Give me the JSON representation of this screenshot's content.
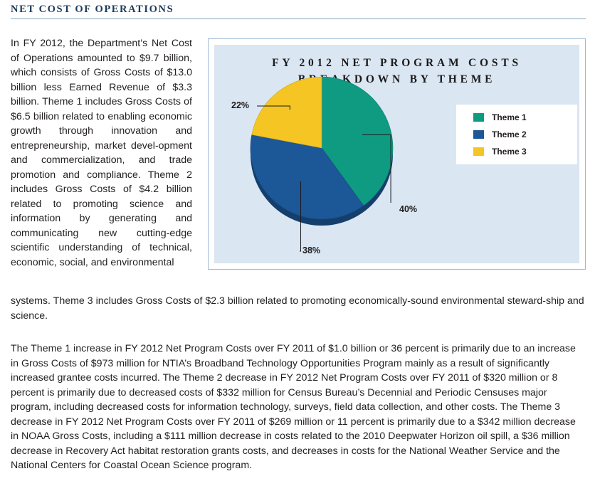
{
  "section_heading": "NET COST OF OPERATIONS",
  "paragraph1_left": "In FY 2012, the Department’s Net Cost of Operations amounted to $9.7 billion, which consists of Gross Costs of $13.0 billion less Earned Revenue of $3.3 billion. Theme 1 includes Gross Costs of $6.5 billion related to enabling economic growth through innovation and entrepreneurship, market devel-opment and commercialization, and trade promotion and compliance. Theme 2 includes Gross Costs of $4.2 billion related to promoting science and information by generating and communicating new cutting-edge scientific understanding of technical, economic, social, and environmental",
  "paragraph1_cont": "systems. Theme 3 includes Gross Costs of $2.3 billion related to promoting economically-sound environmental steward-ship and science.",
  "paragraph2": "The Theme 1 increase in FY 2012 Net Program Costs over FY 2011 of $1.0 billion or 36 percent is primarily due to an increase in Gross Costs of $973 million for NTIA’s Broadband Technology Opportunities Program mainly as a result of significantly increased grantee costs incurred. The Theme 2 decrease in FY 2012 Net Program Costs over FY 2011 of $320 million or 8 percent is primarily due to decreased costs of $332 million for Census Bureau’s Decennial and Periodic Censuses major program, including decreased costs for information technology, surveys, field data collection, and other costs. The Theme 3 decrease in FY 2012 Net Program Costs over FY 2011 of $269 million or 11 percent is primarily due to a $342 million decrease in NOAA Gross Costs, including a $111 million decrease in costs related to the 2010 Deepwater Horizon oil spill, a $36 million decrease in Recovery Act habitat restoration grants costs, and decreases in costs for the National Weather Service and the National Centers for Coastal Ocean Science program.",
  "chart_data": {
    "type": "pie",
    "title_line1": "FY 2012 NET PROGRAM COSTS",
    "title_line2": "BREAKDOWN BY THEME",
    "categories": [
      "Theme 1",
      "Theme 2",
      "Theme 3"
    ],
    "values": [
      40,
      38,
      22
    ],
    "value_labels": [
      "40%",
      "38%",
      "22%"
    ],
    "colors": [
      "#0f9a82",
      "#1c5797",
      "#f4c523"
    ],
    "legend_position": "right",
    "style": "3d"
  }
}
